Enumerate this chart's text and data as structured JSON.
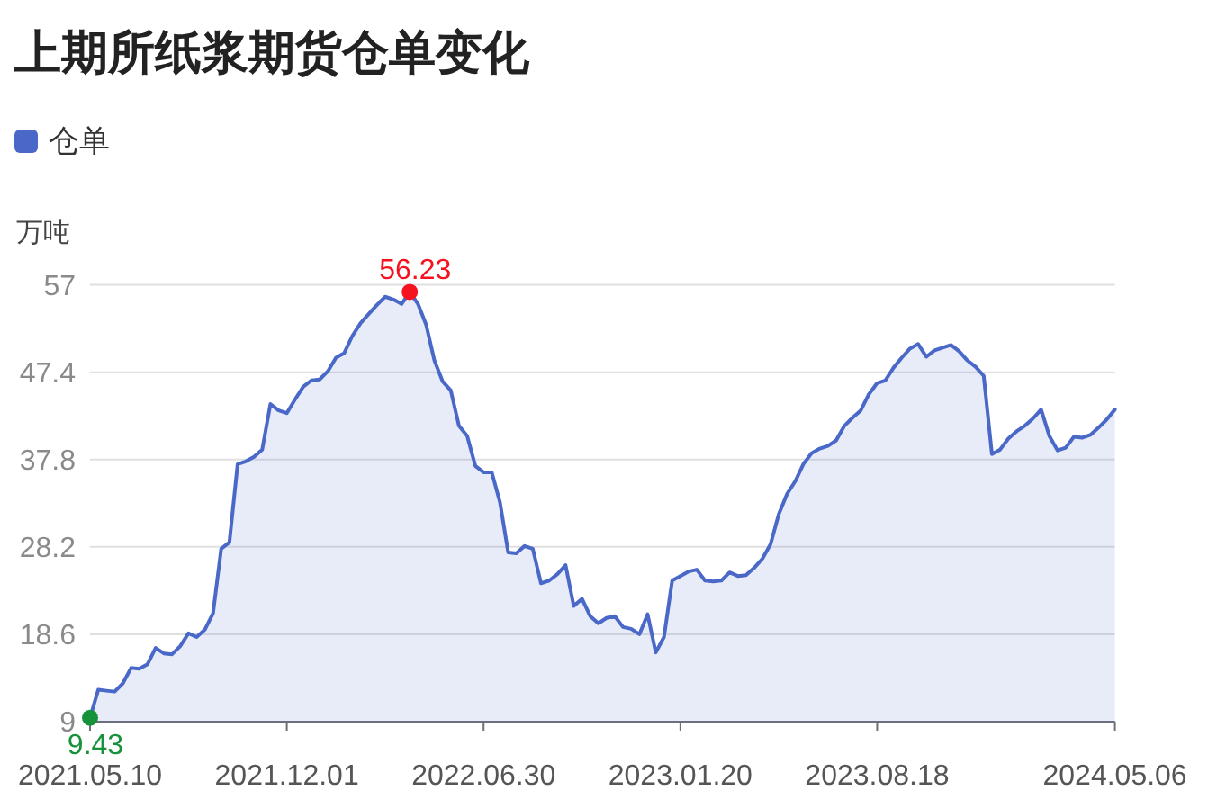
{
  "chart_data": {
    "type": "area",
    "title": "上期所纸浆期货仓单变化",
    "ylabel": "万吨",
    "categories": [
      "2021.05.10",
      null,
      null,
      null,
      null,
      null,
      null,
      null,
      null,
      null,
      null,
      null,
      null,
      null,
      null,
      null,
      null,
      null,
      null,
      null,
      null,
      null,
      null,
      null,
      "2021.12.01",
      null,
      null,
      null,
      null,
      null,
      null,
      null,
      null,
      null,
      null,
      null,
      null,
      null,
      null,
      null,
      null,
      null,
      null,
      null,
      null,
      null,
      null,
      null,
      "2022.06.30",
      null,
      null,
      null,
      null,
      null,
      null,
      null,
      null,
      null,
      null,
      null,
      null,
      null,
      null,
      null,
      null,
      null,
      null,
      null,
      null,
      null,
      null,
      null,
      "2023.01.20",
      null,
      null,
      null,
      null,
      null,
      null,
      null,
      null,
      null,
      null,
      null,
      null,
      null,
      null,
      null,
      null,
      null,
      null,
      null,
      null,
      null,
      null,
      null,
      "2023.08.18",
      null,
      null,
      null,
      null,
      null,
      null,
      null,
      null,
      null,
      null,
      null,
      null,
      null,
      null,
      null,
      null,
      null,
      null,
      null,
      null,
      null,
      null,
      null,
      null,
      null,
      null,
      null,
      null,
      "2024.05.06"
    ],
    "series": [
      {
        "name": "仓单",
        "type": "area",
        "color": "#4a68c8",
        "values": [
          9.43,
          12.5,
          12.4,
          12.3,
          13.2,
          14.9,
          14.8,
          15.3,
          17.1,
          16.5,
          16.4,
          17.3,
          18.7,
          18.3,
          19.1,
          20.9,
          28.0,
          28.7,
          37.3,
          37.6,
          38.1,
          38.9,
          43.9,
          43.2,
          42.9,
          44.4,
          45.8,
          46.5,
          46.6,
          47.5,
          49.0,
          49.5,
          51.4,
          52.8,
          53.8,
          54.8,
          55.7,
          55.4,
          54.9,
          56.23,
          54.9,
          52.6,
          48.7,
          46.4,
          45.4,
          41.5,
          40.4,
          37.1,
          36.4,
          36.4,
          33.1,
          27.6,
          27.5,
          28.3,
          28.0,
          24.2,
          24.5,
          25.2,
          26.2,
          21.7,
          22.5,
          20.6,
          19.8,
          20.4,
          20.6,
          19.4,
          19.2,
          18.6,
          20.8,
          16.6,
          18.3,
          24.5,
          25.0,
          25.5,
          25.7,
          24.5,
          24.4,
          24.5,
          25.4,
          25.0,
          25.1,
          25.9,
          26.9,
          28.5,
          31.8,
          34.0,
          35.4,
          37.3,
          38.5,
          39.0,
          39.3,
          39.9,
          41.5,
          42.4,
          43.2,
          45.0,
          46.2,
          46.5,
          47.9,
          49.0,
          50.0,
          50.5,
          49.1,
          49.8,
          50.1,
          50.4,
          49.7,
          48.7,
          48.0,
          47.0,
          38.4,
          38.9,
          40.1,
          40.9,
          41.5,
          42.3,
          43.3,
          40.4,
          38.8,
          39.1,
          40.3,
          40.2,
          40.5,
          41.3,
          42.2,
          43.3
        ]
      },
      {
        "type": "scatter",
        "marker": "circle",
        "values": [
          9.43,
          null,
          null,
          null,
          null,
          null,
          null,
          null,
          null,
          null,
          null,
          null,
          null,
          null,
          null,
          null,
          null,
          null,
          null,
          null,
          null,
          null,
          null,
          null,
          null,
          null,
          null,
          null,
          null,
          null,
          null,
          null,
          null,
          null,
          null,
          null,
          null,
          null,
          null,
          56.23,
          null,
          null,
          null,
          null,
          null,
          null,
          null,
          null,
          null,
          null,
          null,
          null,
          null,
          null,
          null,
          null,
          null,
          null,
          null,
          null,
          null,
          null,
          null,
          null,
          null,
          null,
          null,
          null,
          null,
          null,
          null,
          null,
          null,
          null,
          null,
          null,
          null,
          null,
          null,
          null,
          null,
          null,
          null,
          null,
          null,
          null,
          null,
          null,
          null,
          null,
          null,
          null,
          null,
          null,
          null,
          null,
          null,
          null,
          null,
          null,
          null,
          null,
          null,
          null,
          null,
          null,
          null,
          null,
          null,
          null,
          null,
          null,
          null,
          null,
          null,
          null,
          null,
          null,
          null,
          null,
          null,
          null,
          null,
          null,
          null,
          null
        ],
        "colors": [
          "#17913a",
          null,
          null,
          null,
          null,
          null,
          null,
          null,
          null,
          null,
          null,
          null,
          null,
          null,
          null,
          null,
          null,
          null,
          null,
          null,
          null,
          null,
          null,
          null,
          null,
          null,
          null,
          null,
          null,
          null,
          null,
          null,
          null,
          null,
          null,
          null,
          null,
          null,
          null,
          "#f5121f",
          null,
          null,
          null,
          null,
          null,
          null,
          null,
          null,
          null,
          null,
          null,
          null,
          null,
          null,
          null,
          null,
          null,
          null,
          null,
          null,
          null,
          null,
          null,
          null,
          null,
          null,
          null,
          null,
          null,
          null,
          null,
          null,
          null,
          null,
          null,
          null,
          null,
          null,
          null,
          null,
          null,
          null,
          null,
          null,
          null,
          null,
          null,
          null,
          null,
          null,
          null,
          null,
          null,
          null,
          null,
          null,
          null,
          null,
          null,
          null,
          null,
          null,
          null,
          null,
          null,
          null,
          null,
          null,
          null,
          null,
          null,
          null,
          null,
          null,
          null,
          null,
          null,
          null,
          null,
          null,
          null,
          null,
          null,
          null,
          null,
          null
        ],
        "value_labels": [
          "9.43",
          null,
          null,
          null,
          null,
          null,
          null,
          null,
          null,
          null,
          null,
          null,
          null,
          null,
          null,
          null,
          null,
          null,
          null,
          null,
          null,
          null,
          null,
          null,
          null,
          null,
          null,
          null,
          null,
          null,
          null,
          null,
          null,
          null,
          null,
          null,
          null,
          null,
          null,
          "56.23",
          null,
          null,
          null,
          null,
          null,
          null,
          null,
          null,
          null,
          null,
          null,
          null,
          null,
          null,
          null,
          null,
          null,
          null,
          null,
          null,
          null,
          null,
          null,
          null,
          null,
          null,
          null,
          null,
          null,
          null,
          null,
          null,
          null,
          null,
          null,
          null,
          null,
          null,
          null,
          null,
          null,
          null,
          null,
          null,
          null,
          null,
          null,
          null,
          null,
          null,
          null,
          null,
          null,
          null,
          null,
          null,
          null,
          null,
          null,
          null,
          null,
          null,
          null,
          null,
          null,
          null,
          null,
          null,
          null,
          null,
          null,
          null,
          null,
          null,
          null,
          null,
          null,
          null,
          null,
          null,
          null,
          null,
          null,
          null,
          null,
          null
        ]
      }
    ],
    "ylim": [
      9,
      57
    ],
    "yticks": [
      9,
      18.6,
      28.2,
      37.8,
      47.4,
      57
    ],
    "grid": "y",
    "legend": "top left"
  }
}
